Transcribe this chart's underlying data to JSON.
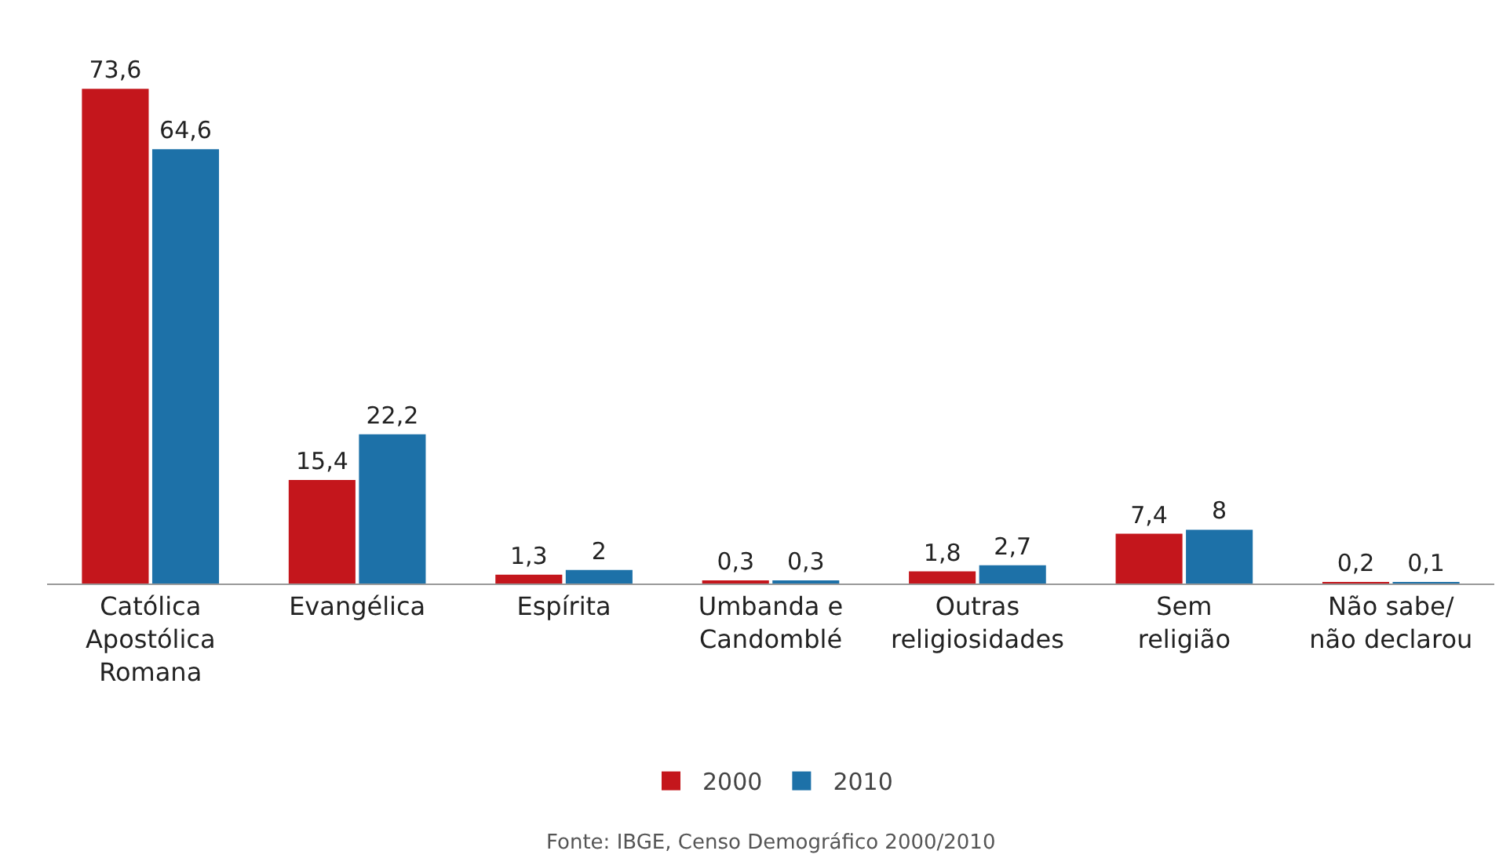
{
  "chart_data": {
    "type": "bar",
    "categories": [
      "Católica\nApostólica\nRomana",
      "Evangélica",
      "Espírita",
      "Umbanda e\nCandomblé",
      "Outras\nreligiosidades",
      "Sem\nreligião",
      "Não sabe/\nnão declarou"
    ],
    "series": [
      {
        "name": "2000",
        "color": "#c4161c",
        "values": [
          73.6,
          15.4,
          1.3,
          0.3,
          1.8,
          7.4,
          0.2
        ],
        "value_labels": [
          "73,6",
          "15,4",
          "1,3",
          "0,3",
          "1,8",
          "7,4",
          "0,2"
        ]
      },
      {
        "name": "2010",
        "color": "#1d71a8",
        "values": [
          64.6,
          22.2,
          2,
          0.3,
          2.7,
          8,
          0.1
        ],
        "value_labels": [
          "64,6",
          "22,2",
          "2",
          "0,3",
          "2,7",
          "8",
          "0,1"
        ]
      }
    ],
    "legend": "bottom",
    "grid": false,
    "annotations": [
      "Fonte: IBGE, Censo Demográfico 2000/2010"
    ]
  }
}
